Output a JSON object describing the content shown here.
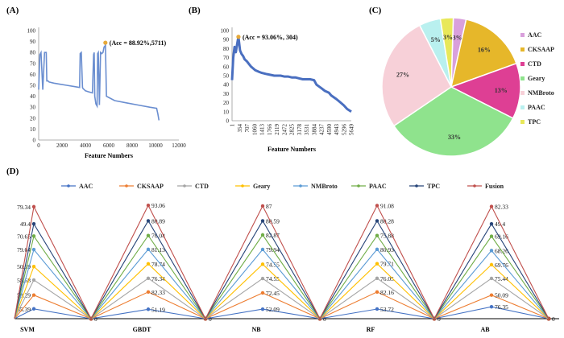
{
  "panels": {
    "a_label": "(A)",
    "b_label": "(B)",
    "c_label": "(C)",
    "d_label": "(D)"
  },
  "chart_data": [
    {
      "id": "A",
      "type": "line",
      "title": "",
      "xlabel": "Feature Numbers",
      "ylabel": "",
      "xlim": [
        0,
        12000
      ],
      "ylim": [
        0,
        100
      ],
      "xticks": [
        "0",
        "2000",
        "4000",
        "6000",
        "8000",
        "10000",
        "12000"
      ],
      "yticks": [
        "0",
        "10",
        "20",
        "30",
        "40",
        "50",
        "60",
        "70",
        "80",
        "90",
        "100"
      ],
      "annotation": "(Acc = 88.92%,5711)",
      "best_point": {
        "x": 5711,
        "y": 88.92
      },
      "series": [
        {
          "name": "Accuracy",
          "color": "#6a8ed0",
          "x": [
            0,
            100,
            200,
            350,
            500,
            650,
            700,
            800,
            900,
            1300,
            1800,
            2400,
            3000,
            3500,
            3550,
            3650,
            3750,
            3800,
            3900,
            4000,
            4300,
            4600,
            4700,
            4750,
            4800,
            4900,
            5000,
            5050,
            5100,
            5200,
            5300,
            5400,
            5500,
            5600,
            5700,
            5711,
            5800,
            6500,
            7500,
            8500,
            9500,
            10100,
            10200,
            10300
          ],
          "y": [
            46,
            78,
            80,
            46,
            80,
            80,
            54,
            54,
            53,
            52,
            51,
            50,
            49,
            48,
            79,
            80,
            48,
            47,
            46,
            45,
            44,
            43,
            78,
            80,
            40,
            33,
            31,
            79,
            80,
            32,
            80,
            79,
            80,
            85,
            86,
            88.92,
            40,
            36,
            34,
            32,
            30,
            29,
            24,
            18
          ]
        }
      ]
    },
    {
      "id": "B",
      "type": "line",
      "title": "",
      "xlabel": "Feature Numbers",
      "ylabel": "",
      "xlim": [
        1,
        5649
      ],
      "ylim": [
        0,
        100
      ],
      "xticks": [
        "1",
        "354",
        "707",
        "1060",
        "1413",
        "1766",
        "2119",
        "2472",
        "2825",
        "3178",
        "3531",
        "3884",
        "4237",
        "4590",
        "4943",
        "5296",
        "5649"
      ],
      "yticks": [
        "0",
        "10",
        "20",
        "30",
        "40",
        "50",
        "60",
        "70",
        "80",
        "90",
        "100"
      ],
      "annotation": "(Acc = 93.06%, 304)",
      "best_point": {
        "x": 304,
        "y": 93.06
      },
      "series": [
        {
          "name": "Accuracy",
          "color": "#4a6fc0",
          "x": [
            1,
            60,
            120,
            180,
            240,
            304,
            380,
            450,
            520,
            600,
            700,
            800,
            900,
            1000,
            1100,
            1200,
            1300,
            1413,
            1600,
            1800,
            2000,
            2119,
            2300,
            2472,
            2650,
            2825,
            3000,
            3178,
            3350,
            3531,
            3700,
            3884,
            4000,
            4237,
            4400,
            4590,
            4700,
            4943,
            5100,
            5296,
            5450,
            5649
          ],
          "y": [
            45,
            70,
            82,
            76,
            85,
            93.06,
            78,
            74,
            72,
            68,
            66,
            63,
            60,
            58,
            56,
            55,
            54,
            53,
            52,
            51,
            50,
            50,
            50,
            49,
            49,
            48,
            48,
            47,
            46,
            46,
            46,
            45,
            40,
            36,
            33,
            31,
            28,
            24,
            21,
            17,
            13,
            10
          ]
        }
      ]
    },
    {
      "id": "C",
      "type": "pie",
      "title": "",
      "labels": [
        "AAC",
        "CKSAAP",
        "CTD",
        "Geary",
        "NMBroto",
        "PAAC",
        "TPC"
      ],
      "values": [
        3,
        16,
        13,
        33,
        27,
        5,
        3
      ],
      "value_labels": [
        "3%",
        "16%",
        "13%",
        "33%",
        "27%",
        "5%",
        "3%"
      ],
      "colors": [
        "#d9a0dc",
        "#e6b72a",
        "#de3f94",
        "#8fe38d",
        "#f7d0d8",
        "#b9f0ef",
        "#e8e85a"
      ],
      "legend": "right"
    },
    {
      "id": "D",
      "type": "line",
      "title": "",
      "categories": [
        "SVM",
        "GBDT",
        "NB",
        "RF",
        "AB"
      ],
      "legend": "top",
      "series": [
        {
          "name": "AAC",
          "color": "#4472c4",
          "values": [
            55.39,
            51.19,
            52.09,
            53.72,
            76.35
          ],
          "labels": [
            "55.39",
            "51.19",
            "52.09",
            "53.72",
            "76.35"
          ]
        },
        {
          "name": "CKSAAP",
          "color": "#ed7d31",
          "values": [
            50.29,
            82.33,
            72.45,
            82.16,
            50.09
          ],
          "labels": [
            "50.29",
            "82.33",
            "72.45",
            "82.16",
            "50.09"
          ]
        },
        {
          "name": "CTD",
          "color": "#a5a5a5",
          "values": [
            58.68,
            76.34,
            74.55,
            76.05,
            75.44
          ],
          "labels": [
            "58.68",
            "76.34",
            "74.55",
            "76.05",
            "75.44"
          ]
        },
        {
          "name": "Geary",
          "color": "#ffc000",
          "values": [
            50.39,
            78.74,
            74.55,
            79.71,
            69.76
          ],
          "labels": [
            "50.39",
            "78.74",
            "74.55",
            "79.71",
            "69.76"
          ]
        },
        {
          "name": "NMBroto",
          "color": "#5b9bd5",
          "values": [
            79.04,
            81.13,
            79.94,
            80.93,
            68.26
          ],
          "labels": [
            "79.04",
            "81.13",
            "79.94",
            "80.93",
            "68.26"
          ]
        },
        {
          "name": "PAAC",
          "color": "#70ad47",
          "values": [
            70.65,
            76.04,
            82.87,
            75.88,
            69.16
          ],
          "labels": [
            "70.65",
            "76.04",
            "82.87",
            "75.88",
            "69.16"
          ]
        },
        {
          "name": "TPC",
          "color": "#264478",
          "values": [
            49.4,
            80.89,
            80.59,
            80.28,
            49.4
          ],
          "labels": [
            "49.4",
            "80.89",
            "80.59",
            "80.28",
            "49.4"
          ]
        },
        {
          "name": "Fusion",
          "color": "#c0504d",
          "values": [
            79.34,
            93.06,
            87,
            91.08,
            82.33
          ],
          "labels": [
            "79.34",
            "93.06",
            "87",
            "91.08",
            "82.33"
          ]
        }
      ],
      "zero_value_label": "0"
    }
  ]
}
